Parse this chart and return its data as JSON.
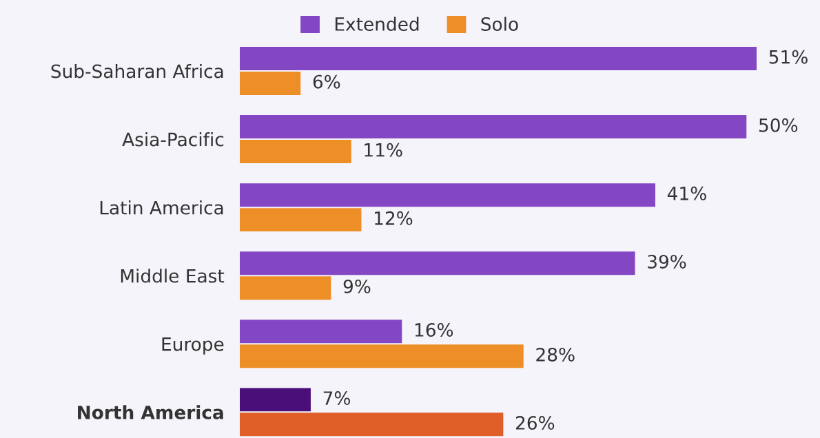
{
  "chart_data": {
    "type": "bar",
    "orientation": "horizontal",
    "legend": "top",
    "categories": [
      "Sub-Saharan Africa",
      "Asia-Pacific",
      "Latin America",
      "Middle East",
      "Europe",
      "North America"
    ],
    "series": [
      {
        "name": "Extended",
        "color": "#8347c4",
        "colors": [
          "#8347c4",
          "#8347c4",
          "#8347c4",
          "#8347c4",
          "#8347c4",
          "#4a0f78"
        ],
        "values": [
          51,
          50,
          41,
          39,
          16,
          7
        ],
        "value_labels": [
          "51%",
          "50%",
          "41%",
          "39%",
          "16%",
          "7%"
        ]
      },
      {
        "name": "Solo",
        "color": "#ee8e27",
        "colors": [
          "#ee8e27",
          "#ee8e27",
          "#ee8e27",
          "#ee8e27",
          "#ee8e27",
          "#e05e28"
        ],
        "values": [
          6,
          11,
          12,
          9,
          28,
          26
        ],
        "value_labels": [
          "6%",
          "11%",
          "12%",
          "9%",
          "28%",
          "26%"
        ]
      }
    ]
  }
}
